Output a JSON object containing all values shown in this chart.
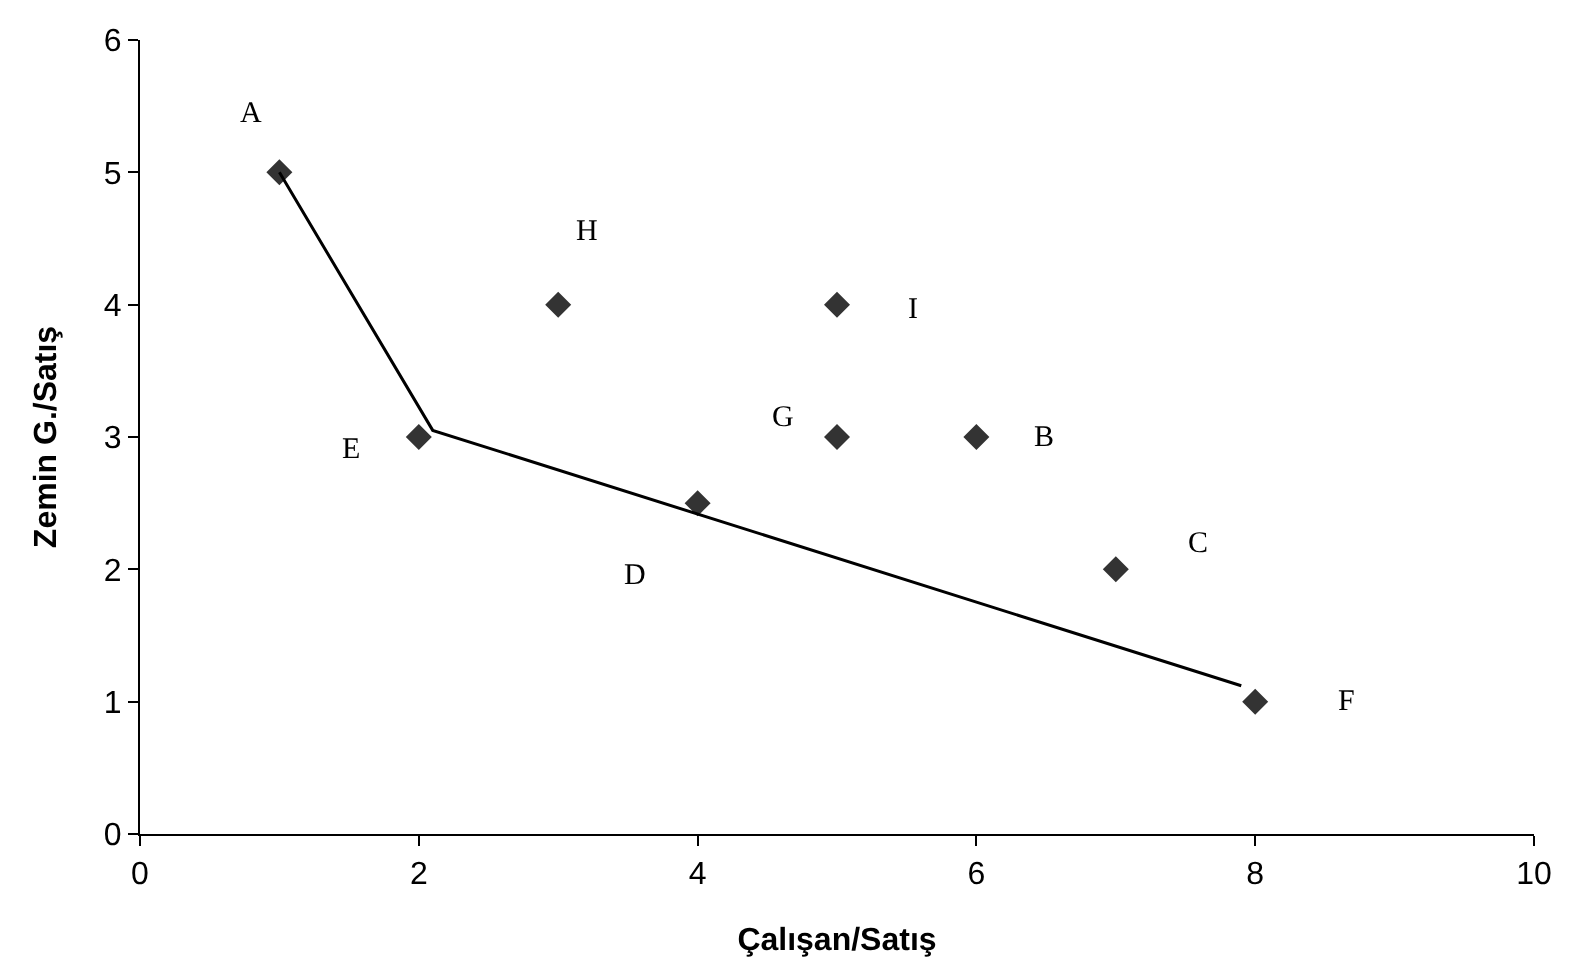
{
  "chart_data": {
    "type": "scatter",
    "xlabel": "Çalışan/Satış",
    "ylabel": "Zemin G./Satış",
    "xlim": [
      0,
      10
    ],
    "xticks": [
      0,
      2,
      4,
      6,
      8,
      10
    ],
    "ylim": [
      0,
      6
    ],
    "yticks": [
      0,
      1,
      2,
      3,
      4,
      5,
      6
    ],
    "grid": false,
    "series": [
      {
        "marker": "diamond",
        "color": "#333333",
        "x": [
          1,
          2,
          3,
          4,
          5,
          5,
          6,
          7,
          8
        ],
        "values": [
          5,
          3,
          4,
          2.5,
          3,
          4,
          3,
          2,
          1
        ]
      },
      {
        "type": "line",
        "marker": "none",
        "line_style": "solid",
        "color": "#000000",
        "x": [
          1,
          2.1,
          7.9
        ],
        "values": [
          5,
          3.05,
          1.12
        ]
      }
    ],
    "annotations": [
      {
        "text": "A",
        "x": 1,
        "y": 5
      },
      {
        "text": "H",
        "x": 3,
        "y": 4
      },
      {
        "text": "I",
        "x": 5,
        "y": 4
      },
      {
        "text": "G",
        "x": 5,
        "y": 3
      },
      {
        "text": "B",
        "x": 6,
        "y": 3
      },
      {
        "text": "C",
        "x": 7,
        "y": 2
      },
      {
        "text": "F",
        "x": 8,
        "y": 1
      },
      {
        "text": "E",
        "x": 2,
        "y": 3
      },
      {
        "text": "D",
        "x": 4,
        "y": 2.5
      }
    ]
  }
}
